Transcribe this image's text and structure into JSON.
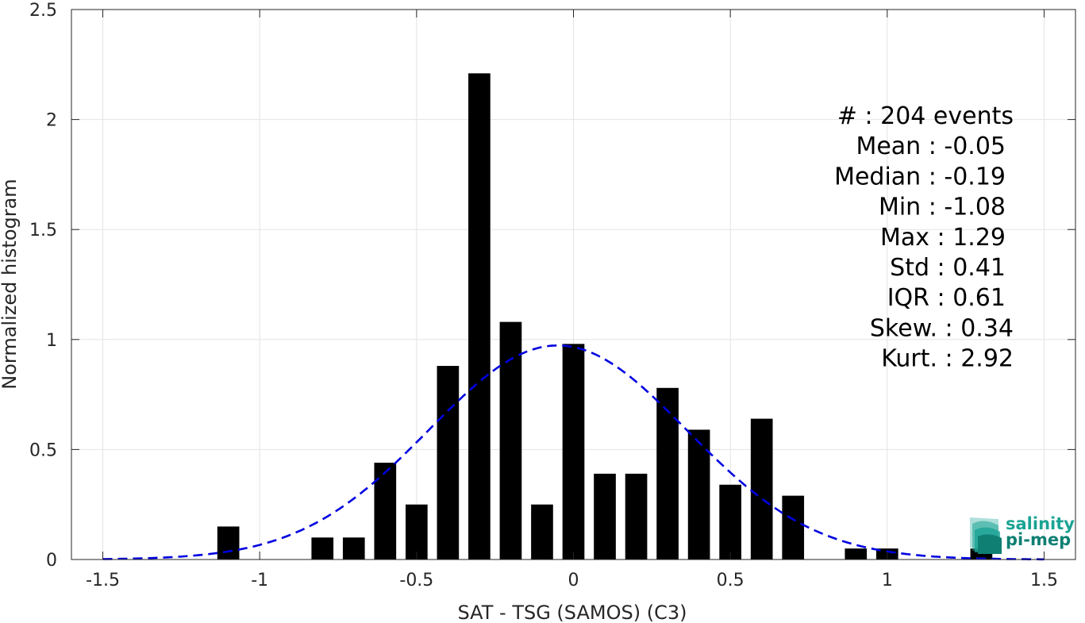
{
  "chart_data": {
    "type": "bar",
    "xlabel": "SAT - TSG (SAMOS) (C3)",
    "ylabel": "Normalized histogram",
    "xlim": [
      -1.6,
      1.6
    ],
    "ylim": [
      0,
      2.5
    ],
    "grid": true,
    "x_ticks": [
      -1.5,
      -1,
      -0.5,
      0,
      0.5,
      1,
      1.5
    ],
    "x_tick_labels": [
      "-1.5",
      "-1",
      "-0.5",
      "0",
      "0.5",
      "1",
      "1.5"
    ],
    "y_ticks": [
      0,
      0.5,
      1,
      1.5,
      2,
      2.5
    ],
    "y_tick_labels": [
      "0",
      "0.5",
      "1",
      "1.5",
      "2",
      "2.5"
    ],
    "bin_width": 0.1,
    "bar_width": 0.07,
    "bar_color": "#000000",
    "x": [
      -1.1,
      -1.0,
      -0.9,
      -0.8,
      -0.7,
      -0.6,
      -0.5,
      -0.4,
      -0.3,
      -0.2,
      -0.1,
      0.0,
      0.1,
      0.2,
      0.3,
      0.4,
      0.5,
      0.6,
      0.7,
      0.8,
      0.9,
      1.0,
      1.1,
      1.2,
      1.3
    ],
    "values": [
      0.15,
      0,
      0,
      0.1,
      0.1,
      0.44,
      0.25,
      0.88,
      2.21,
      1.08,
      0.25,
      0.98,
      0.39,
      0.39,
      0.78,
      0.59,
      0.34,
      0.64,
      0.29,
      0,
      0.05,
      0.05,
      0,
      0,
      0.05
    ],
    "fit": {
      "type": "normal",
      "mean": -0.05,
      "std": 0.41,
      "color": "#0000e0",
      "style": "dashed",
      "x_range": [
        -1.5,
        1.5
      ]
    },
    "annotations": [
      "#  : 204 events",
      "Mean : -0.05",
      "Median : -0.19",
      "Min : -1.08",
      "Max : 1.29",
      "Std : 0.41",
      "IQR : 0.61",
      "Skew. : 0.34",
      "Kurt. : 2.92"
    ]
  },
  "logo": {
    "line1": "salinity",
    "line2": "pi-mep",
    "icon": "wave-layers-icon",
    "color": "#1aa394"
  }
}
